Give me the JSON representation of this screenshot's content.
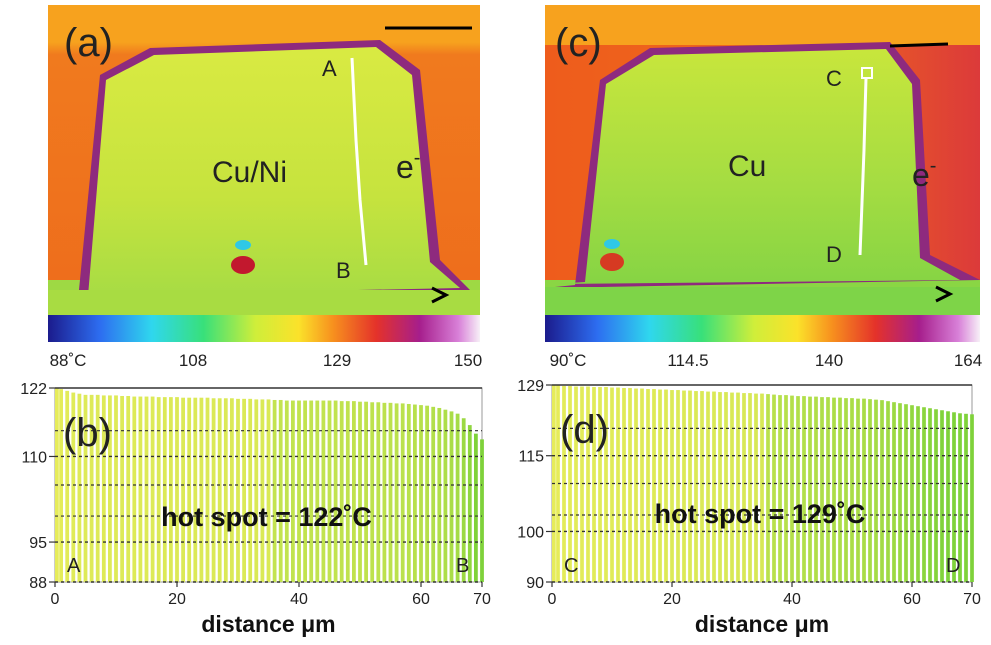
{
  "panels": {
    "a": {
      "label": "(a)",
      "material": "Cu/Ni",
      "point_top": "A",
      "point_bottom": "B",
      "electron": "e",
      "electron_sup": "-",
      "colorbar_ticks": [
        "88˚C",
        "108",
        "129",
        "150"
      ]
    },
    "c": {
      "label": "(c)",
      "material": "Cu",
      "point_top": "C",
      "point_bottom": "D",
      "electron": "e",
      "electron_sup": "-",
      "colorbar_ticks": [
        "90˚C",
        "114.5",
        "140",
        "164"
      ]
    }
  },
  "colors": {
    "background_orange": "#f07a1e",
    "top_orange": "#f7a21e",
    "border_purple": "#8e2a7e",
    "body_yellow": "#cfe63a",
    "body_green": "#98d840",
    "bar_yellow": "#e6ec5a",
    "bar_green": "#7fd23a"
  },
  "chart_data": [
    {
      "type": "bar",
      "panel_label": "(b)",
      "xlabel": "distance μm",
      "xlim": [
        0,
        70
      ],
      "ylim": [
        88,
        122
      ],
      "xticks": [
        0,
        20,
        40,
        60,
        70
      ],
      "yticks": [
        88,
        95,
        110,
        122
      ],
      "annotation": "hot spot = 122˚C",
      "start_label": "A",
      "end_label": "B",
      "x": [
        0,
        1,
        2,
        3,
        4,
        5,
        6,
        7,
        8,
        9,
        10,
        11,
        12,
        13,
        14,
        15,
        16,
        17,
        18,
        19,
        20,
        21,
        22,
        23,
        24,
        25,
        26,
        27,
        28,
        29,
        30,
        31,
        32,
        33,
        34,
        35,
        36,
        37,
        38,
        39,
        40,
        41,
        42,
        43,
        44,
        45,
        46,
        47,
        48,
        49,
        50,
        51,
        52,
        53,
        54,
        55,
        56,
        57,
        58,
        59,
        60,
        61,
        62,
        63,
        64,
        65,
        66,
        67,
        68,
        69,
        70
      ],
      "values": [
        122,
        121.8,
        121.5,
        121.2,
        121,
        120.8,
        120.8,
        120.8,
        120.7,
        120.7,
        120.7,
        120.6,
        120.6,
        120.5,
        120.5,
        120.5,
        120.5,
        120.4,
        120.4,
        120.4,
        120.4,
        120.3,
        120.3,
        120.3,
        120.3,
        120.3,
        120.2,
        120.2,
        120.2,
        120.2,
        120.1,
        120.1,
        120.1,
        120,
        120,
        120,
        119.9,
        119.9,
        119.8,
        119.8,
        119.8,
        119.8,
        119.8,
        119.8,
        119.8,
        119.8,
        119.8,
        119.7,
        119.7,
        119.7,
        119.6,
        119.6,
        119.5,
        119.5,
        119.4,
        119.4,
        119.3,
        119.3,
        119.2,
        119.1,
        119,
        118.9,
        118.7,
        118.5,
        118.2,
        117.9,
        117.5,
        116.7,
        115.5,
        114,
        113
      ]
    },
    {
      "type": "bar",
      "panel_label": "(d)",
      "xlabel": "distance μm",
      "xlim": [
        0,
        70
      ],
      "ylim": [
        90,
        129
      ],
      "xticks": [
        0,
        20,
        40,
        60,
        70
      ],
      "yticks": [
        90,
        100,
        115,
        129
      ],
      "annotation": "hot spot = 129˚C",
      "start_label": "C",
      "end_label": "D",
      "x": [
        0,
        1,
        2,
        3,
        4,
        5,
        6,
        7,
        8,
        9,
        10,
        11,
        12,
        13,
        14,
        15,
        16,
        17,
        18,
        19,
        20,
        21,
        22,
        23,
        24,
        25,
        26,
        27,
        28,
        29,
        30,
        31,
        32,
        33,
        34,
        35,
        36,
        37,
        38,
        39,
        40,
        41,
        42,
        43,
        44,
        45,
        46,
        47,
        48,
        49,
        50,
        51,
        52,
        53,
        54,
        55,
        56,
        57,
        58,
        59,
        60,
        61,
        62,
        63,
        64,
        65,
        66,
        67,
        68,
        69,
        70
      ],
      "values": [
        129,
        129,
        128.8,
        128.8,
        128.7,
        128.7,
        128.7,
        128.6,
        128.6,
        128.6,
        128.5,
        128.5,
        128.4,
        128.4,
        128.3,
        128.3,
        128.2,
        128.2,
        128.1,
        128.1,
        128,
        128,
        127.9,
        127.9,
        127.8,
        127.8,
        127.7,
        127.7,
        127.6,
        127.6,
        127.5,
        127.5,
        127.4,
        127.4,
        127.3,
        127.3,
        127.2,
        127.1,
        127,
        127,
        126.9,
        126.8,
        126.8,
        126.7,
        126.7,
        126.6,
        126.6,
        126.5,
        126.5,
        126.4,
        126.4,
        126.3,
        126.3,
        126.2,
        126.1,
        126,
        125.8,
        125.6,
        125.4,
        125.2,
        125,
        124.8,
        124.6,
        124.4,
        124.2,
        124,
        123.8,
        123.6,
        123.4,
        123.3,
        123.2
      ]
    }
  ]
}
